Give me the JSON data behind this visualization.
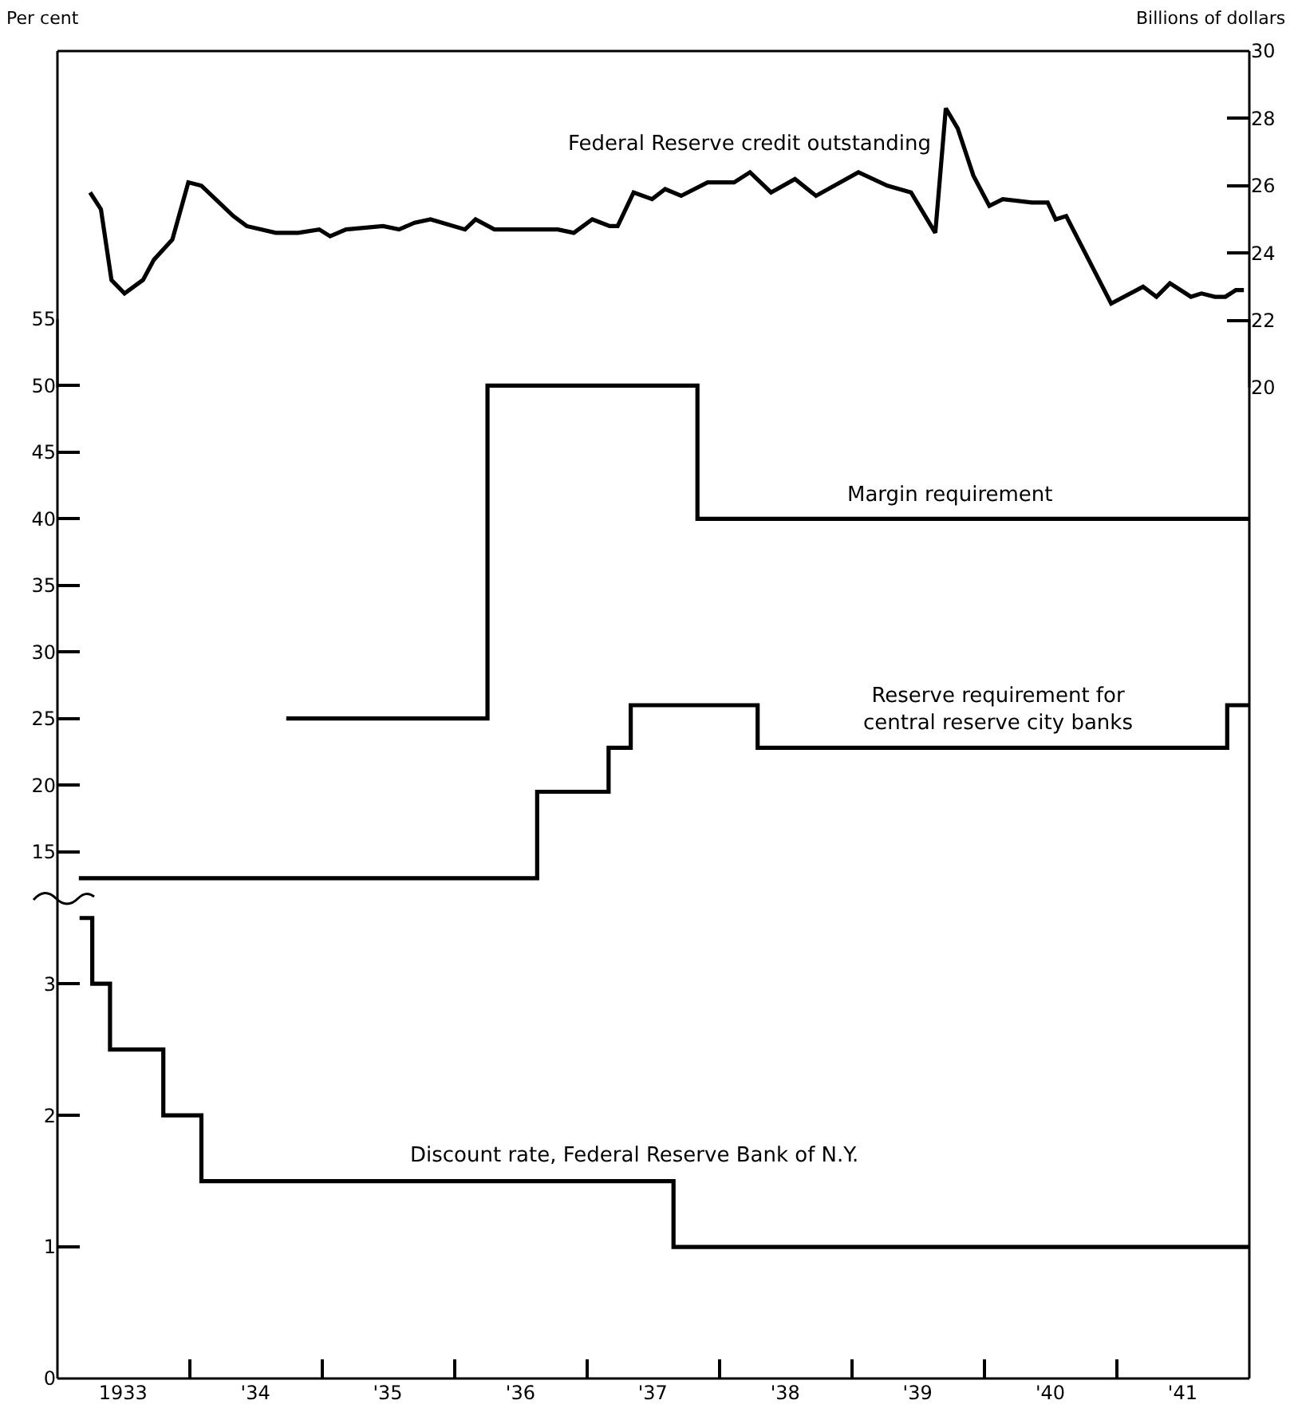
{
  "chart_data": [
    {
      "type": "line",
      "y2label": "Billions of dollars",
      "annotations": [
        "Per cent"
      ],
      "legend": false,
      "grid": false,
      "marker": "none",
      "line_style": "solid",
      "tick_labels": "y",
      "xlim": [
        "1933-01-01",
        "1942-01-01"
      ],
      "y2lim": [
        20,
        30
      ],
      "y2ticks": [
        20,
        22,
        24,
        26,
        28,
        30
      ],
      "series": [
        {
          "name": "Federal Reserve credit outstanding",
          "axis": "y2",
          "color": "#000000",
          "x": [
            "1933-04-01",
            "1933-05-01",
            "1933-05-30",
            "1933-07-05",
            "1933-08-25",
            "1933-09-24",
            "1933-11-14",
            "1933-12-28",
            "1934-02-02",
            "1934-05-01",
            "1934-06-07",
            "1934-08-26",
            "1934-10-27",
            "1934-12-24",
            "1935-01-23",
            "1935-03-08",
            "1935-06-18",
            "1935-08-01",
            "1935-09-13",
            "1935-10-27",
            "1936-01-30",
            "1936-02-28",
            "1936-04-20",
            "1936-10-12",
            "1936-11-25",
            "1937-01-15",
            "1937-03-04",
            "1937-03-26",
            "1937-05-09",
            "1937-06-29",
            "1937-08-04",
            "1937-09-17",
            "1937-11-29",
            "1938-02-10",
            "1938-03-26",
            "1938-05-23",
            "1938-07-28",
            "1938-09-24",
            "1939-01-19",
            "1939-04-09",
            "1939-06-13",
            "1939-08-19",
            "1939-09-17",
            "1939-10-20",
            "1939-12-02",
            "1940-01-15",
            "1940-02-21",
            "1940-05-11",
            "1940-06-24",
            "1940-07-16",
            "1940-08-14",
            "1940-12-16",
            "1941-03-14",
            "1941-04-20",
            "1941-05-27",
            "1941-07-24",
            "1941-08-22",
            "1941-09-28",
            "1941-10-27",
            "1941-11-25",
            "1941-12-17"
          ],
          "values": [
            25.8,
            25.3,
            23.2,
            22.8,
            23.2,
            23.8,
            24.4,
            26.1,
            26.0,
            25.1,
            24.8,
            24.6,
            24.6,
            24.7,
            24.5,
            24.7,
            24.8,
            24.7,
            24.9,
            25.0,
            24.7,
            25.0,
            24.7,
            24.7,
            24.6,
            25.0,
            24.8,
            24.8,
            25.8,
            25.6,
            25.9,
            25.7,
            26.1,
            26.1,
            26.4,
            25.8,
            26.2,
            25.7,
            26.4,
            26.0,
            25.8,
            24.6,
            28.3,
            27.7,
            26.3,
            25.4,
            25.6,
            25.5,
            25.5,
            25.0,
            25.1,
            22.5,
            23.0,
            22.7,
            23.1,
            22.7,
            22.8,
            22.7,
            22.7,
            22.9,
            22.9
          ]
        }
      ]
    },
    {
      "type": "step",
      "legend": false,
      "grid": false,
      "marker": "none",
      "line_style": "solid",
      "tick_labels": "y",
      "xlim": [
        "1933-01-01",
        "1942-01-01"
      ],
      "ylim": [
        11.5,
        55
      ],
      "yticks": [
        15,
        20,
        25,
        30,
        35,
        40,
        45,
        50,
        55
      ],
      "series": [
        {
          "name": "Margin requirement",
          "color": "#000000",
          "x": [
            "1934-09-24",
            "1936-04-01",
            "1937-11-01",
            "1942-01-01"
          ],
          "values": [
            25,
            50,
            40,
            40
          ]
        },
        {
          "name": "Reserve requirement for\ncentral reserve city banks",
          "color": "#000000",
          "x": [
            "1933-03-01",
            "1936-08-16",
            "1937-03-01",
            "1937-05-01",
            "1938-04-16",
            "1941-11-01",
            "1942-01-01"
          ],
          "values": [
            13,
            19.5,
            22.8,
            26,
            22.8,
            26,
            26
          ]
        }
      ]
    },
    {
      "type": "step",
      "legend": false,
      "grid": false,
      "marker": "none",
      "line_style": "solid",
      "xlim": [
        "1933-01-01",
        "1942-01-01"
      ],
      "xticks": [
        {
          "value": "1933-07-01",
          "label": "1933"
        },
        {
          "value": "1934-07-01",
          "label": "'34"
        },
        {
          "value": "1935-07-01",
          "label": "'35"
        },
        {
          "value": "1936-07-01",
          "label": "'36"
        },
        {
          "value": "1937-07-01",
          "label": "'37"
        },
        {
          "value": "1938-07-01",
          "label": "'38"
        },
        {
          "value": "1939-07-01",
          "label": "'39"
        },
        {
          "value": "1940-07-01",
          "label": "'40"
        },
        {
          "value": "1941-07-01",
          "label": "'41"
        },
        {
          "value": "1934-01-01",
          "label": null
        },
        {
          "value": "1935-01-01",
          "label": null
        },
        {
          "value": "1936-01-01",
          "label": null
        },
        {
          "value": "1937-01-01",
          "label": null
        },
        {
          "value": "1938-01-01",
          "label": null
        },
        {
          "value": "1939-01-01",
          "label": null
        },
        {
          "value": "1940-01-01",
          "label": null
        },
        {
          "value": "1941-01-01",
          "label": null
        }
      ],
      "ylim": [
        0,
        3.65
      ],
      "yticks": [
        0,
        1,
        2,
        3
      ],
      "series": [
        {
          "name": "Discount rate, Federal Reserve Bank of N.Y.",
          "color": "#000000",
          "x": [
            "1933-03-03",
            "1933-04-07",
            "1933-05-26",
            "1933-10-20",
            "1934-02-02",
            "1937-08-27",
            "1942-01-01"
          ],
          "values": [
            3.5,
            3,
            2.5,
            2,
            1.5,
            1,
            1
          ]
        }
      ]
    }
  ]
}
